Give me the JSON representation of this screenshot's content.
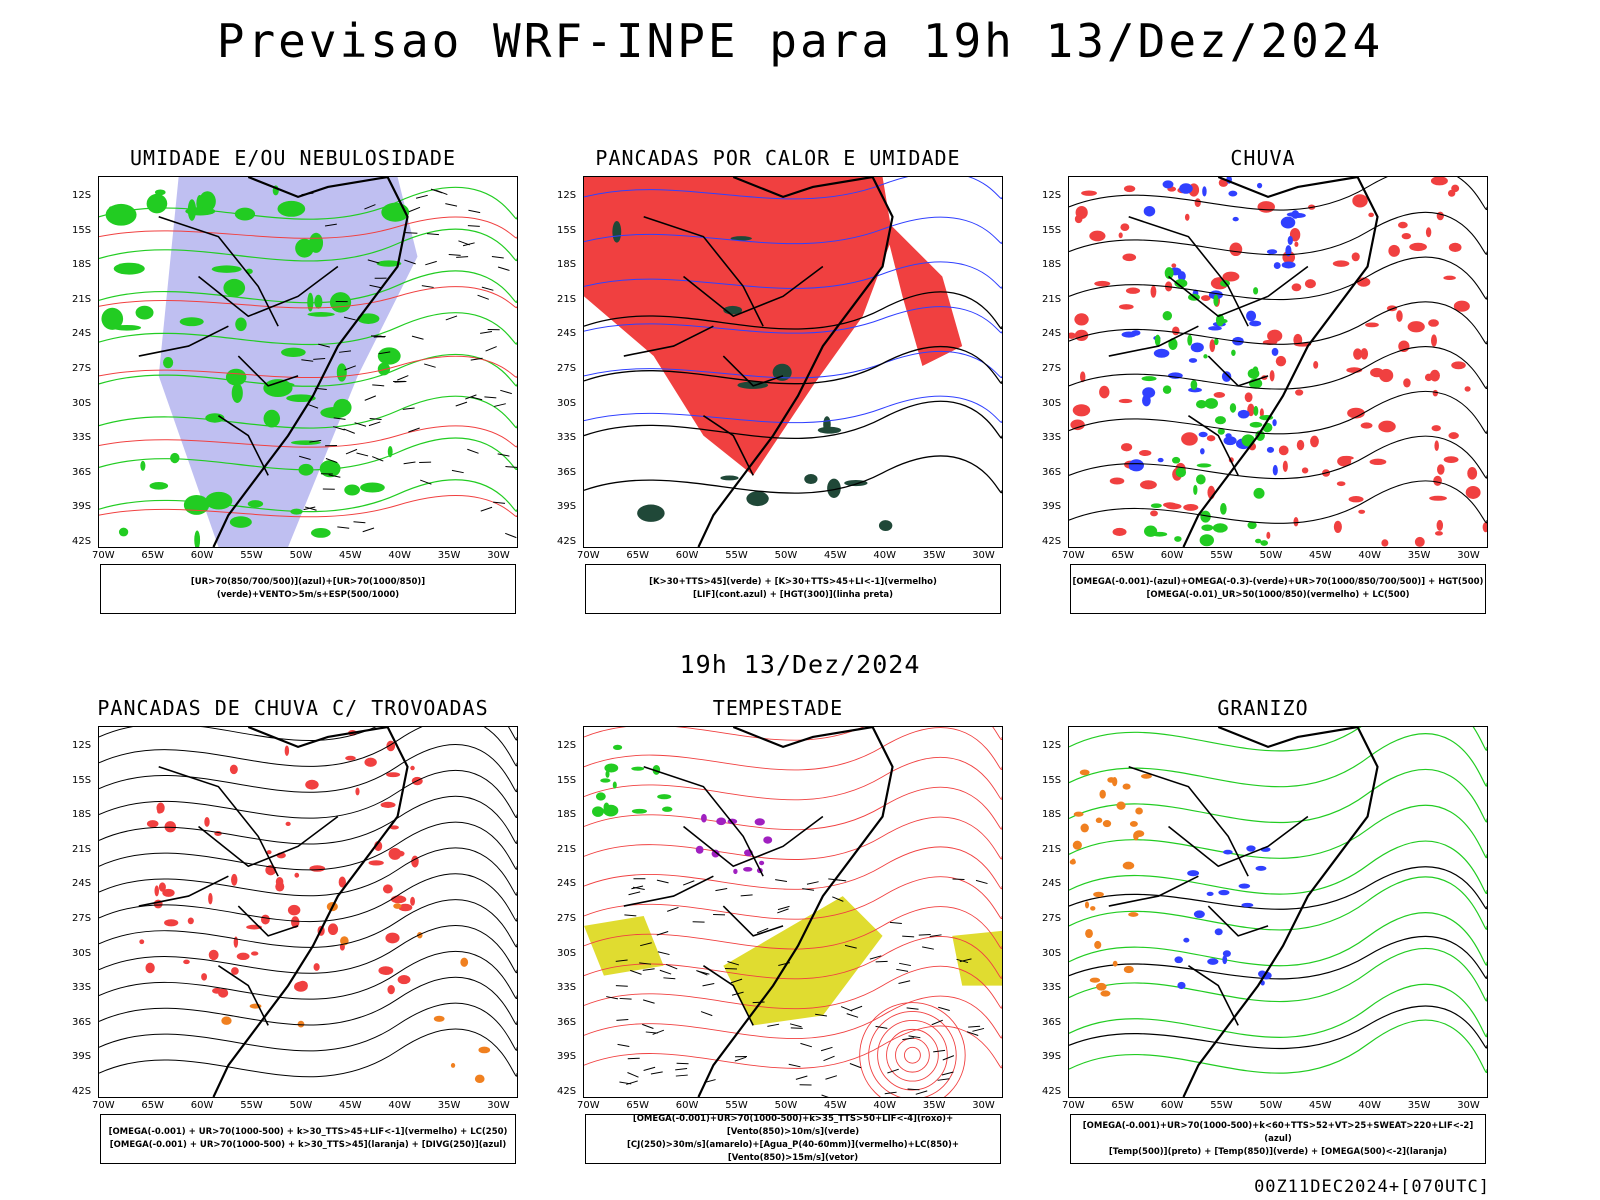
{
  "title": "Previsao WRF-INPE  para 19h 13/Dez/2024",
  "subtitle": "19h 13/Dez/2024",
  "footer": "00Z11DEC2024+[070UTC]",
  "lat_labels": [
    "12S",
    "15S",
    "18S",
    "21S",
    "24S",
    "27S",
    "30S",
    "33S",
    "36S",
    "39S",
    "42S"
  ],
  "lon_labels": [
    "70W",
    "65W",
    "60W",
    "55W",
    "50W",
    "45W",
    "40W",
    "35W",
    "30W"
  ],
  "colors": {
    "red": "#f04040",
    "green": "#22cc22",
    "blue": "#3040ff",
    "lavender": "#b8b8f0",
    "dkgreen": "#204838",
    "yellow": "#e0dc30",
    "orange": "#f08020",
    "purple": "#a020c0"
  },
  "panels": [
    {
      "title": "UMIDADE E/OU NEBULOSIDADE",
      "legend": [
        "[UR>70(850/700/500)](azul)+[UR>70(1000/850)](verde)+VENTO>5m/s+ESP(500/1000)"
      ]
    },
    {
      "title": "PANCADAS POR CALOR E UMIDADE",
      "legend": [
        "[K>30+TTS>45](verde) + [K>30+TTS>45+LI<-1](vermelho)",
        "[LIF](cont.azul) + [HGT(300)](linha preta)"
      ]
    },
    {
      "title": "CHUVA",
      "legend": [
        "[OMEGA(-0.001)-(azul)+OMEGA(-0.3)-(verde)+UR>70(1000/850/700/500)] + HGT(500)",
        "[OMEGA(-0.01)_UR>50(1000/850)(vermelho) + LC(500)"
      ]
    },
    {
      "title": "PANCADAS DE CHUVA C/ TROVOADAS",
      "legend": [
        "[OMEGA(-0.001) + UR>70(1000-500) + k>30_TTS>45+LIF<-1](vermelho) + LC(250)",
        "[OMEGA(-0.001) + UR>70(1000-500) + k>30_TTS>45](laranja) + [DIVG(250)](azul)"
      ]
    },
    {
      "title": "TEMPESTADE",
      "legend": [
        "[OMEGA(-0.001)+UR>70(1000-500)+k>35_TTS>50+LIF<-4](roxo)+[Vento(850)>10m/s](verde)",
        "[CJ(250)>30m/s](amarelo)+[Agua_P(40-60mm)](vermelho)+LC(850)+[Vento(850)>15m/s](vetor)"
      ]
    },
    {
      "title": "GRANIZO",
      "legend": [
        "[OMEGA(-0.001)+UR>70(1000-500)+k<60+TTS>52+VT>25+SWEAT>220+LIF<-2](azul)",
        "[Temp(500)](preto) + [Temp(850)](verde) + [OMEGA(500)<-2](laranja)"
      ]
    }
  ]
}
